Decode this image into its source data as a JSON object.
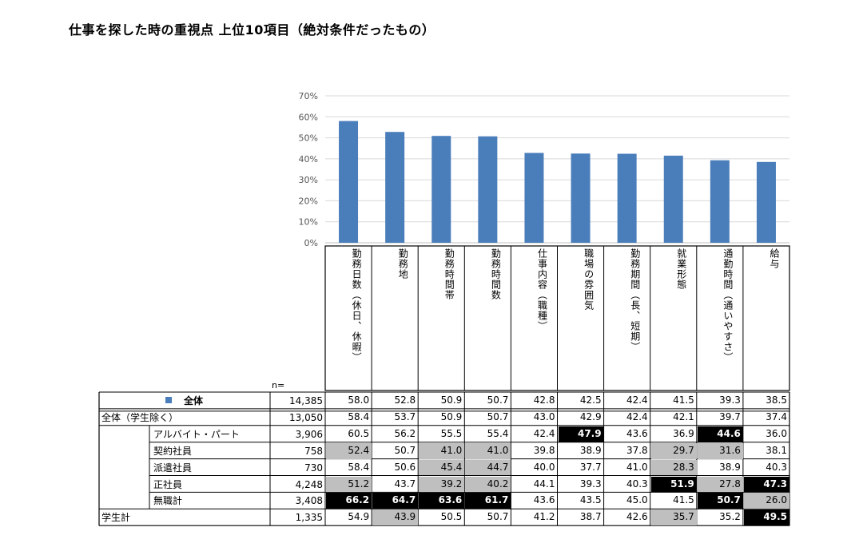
{
  "title": "仕事を探した時の重視点 上位10項目（絶対条件だったもの）",
  "n_label": "n=",
  "colors": {
    "bar": "#4a7ebb",
    "highlight_black": "#000000",
    "highlight_gray": "#bfbfbf"
  },
  "chart_data": {
    "type": "bar",
    "categories": [
      "勤務日数（休日、休暇）",
      "勤務地",
      "勤務時間帯",
      "勤務時間数",
      "仕事内容（職種）",
      "職場の雰囲気",
      "勤務期間（長、短期）",
      "就業形態",
      "通勤時間（通いやすさ）",
      "給与"
    ],
    "series": [
      {
        "name": "全体",
        "values": [
          58.0,
          52.8,
          50.9,
          50.7,
          42.8,
          42.5,
          42.4,
          41.5,
          39.3,
          38.5
        ]
      }
    ],
    "ylim": [
      0,
      70
    ],
    "yticks": [
      "0%",
      "10%",
      "20%",
      "30%",
      "40%",
      "50%",
      "60%",
      "70%"
    ],
    "grid": true,
    "legend": "table"
  },
  "table": {
    "rows": [
      {
        "label": "全体",
        "n": "14,385",
        "values": [
          "58.0",
          "52.8",
          "50.9",
          "50.7",
          "42.8",
          "42.5",
          "42.4",
          "41.5",
          "39.3",
          "38.5"
        ],
        "hl": [
          "",
          "",
          "",
          "",
          "",
          "",
          "",
          "",
          "",
          ""
        ]
      },
      {
        "label": "全体（学生除く）",
        "n": "13,050",
        "values": [
          "58.4",
          "53.7",
          "50.9",
          "50.7",
          "43.0",
          "42.9",
          "42.4",
          "42.1",
          "39.7",
          "37.4"
        ],
        "hl": [
          "",
          "",
          "",
          "",
          "",
          "",
          "",
          "",
          "",
          ""
        ]
      },
      {
        "label": "アルバイト・パート",
        "n": "3,906",
        "values": [
          "60.5",
          "56.2",
          "55.5",
          "55.4",
          "42.4",
          "47.9",
          "43.6",
          "36.9",
          "44.6",
          "36.0"
        ],
        "hl": [
          "",
          "",
          "",
          "",
          "",
          "b",
          "",
          "",
          "b",
          ""
        ]
      },
      {
        "label": "契約社員",
        "n": "758",
        "values": [
          "52.4",
          "50.7",
          "41.0",
          "41.0",
          "39.8",
          "38.9",
          "37.8",
          "29.7",
          "31.6",
          "38.1"
        ],
        "hl": [
          "g",
          "",
          "g",
          "g",
          "",
          "",
          "",
          "g",
          "g",
          ""
        ]
      },
      {
        "label": "派遣社員",
        "n": "730",
        "values": [
          "58.4",
          "50.6",
          "45.4",
          "44.7",
          "40.0",
          "37.7",
          "41.0",
          "28.3",
          "38.9",
          "40.3"
        ],
        "hl": [
          "",
          "",
          "g",
          "g",
          "",
          "",
          "",
          "g",
          "",
          ""
        ]
      },
      {
        "label": "正社員",
        "n": "4,248",
        "values": [
          "51.2",
          "43.7",
          "39.2",
          "40.2",
          "44.1",
          "39.3",
          "40.3",
          "51.9",
          "27.8",
          "47.3"
        ],
        "hl": [
          "g",
          "",
          "g",
          "g",
          "",
          "",
          "",
          "b",
          "g",
          "b"
        ]
      },
      {
        "label": "無職計",
        "n": "3,408",
        "values": [
          "66.2",
          "64.7",
          "63.6",
          "61.7",
          "43.6",
          "43.5",
          "45.0",
          "41.5",
          "50.7",
          "26.0"
        ],
        "hl": [
          "b",
          "b",
          "b",
          "b",
          "",
          "",
          "",
          "",
          "b",
          "g"
        ]
      },
      {
        "label": "学生計",
        "n": "1,335",
        "values": [
          "54.9",
          "43.9",
          "50.5",
          "50.7",
          "41.2",
          "38.7",
          "42.6",
          "35.7",
          "35.2",
          "49.5"
        ],
        "hl": [
          "",
          "g",
          "",
          "",
          "",
          "",
          "",
          "g",
          "",
          "b"
        ]
      }
    ]
  }
}
